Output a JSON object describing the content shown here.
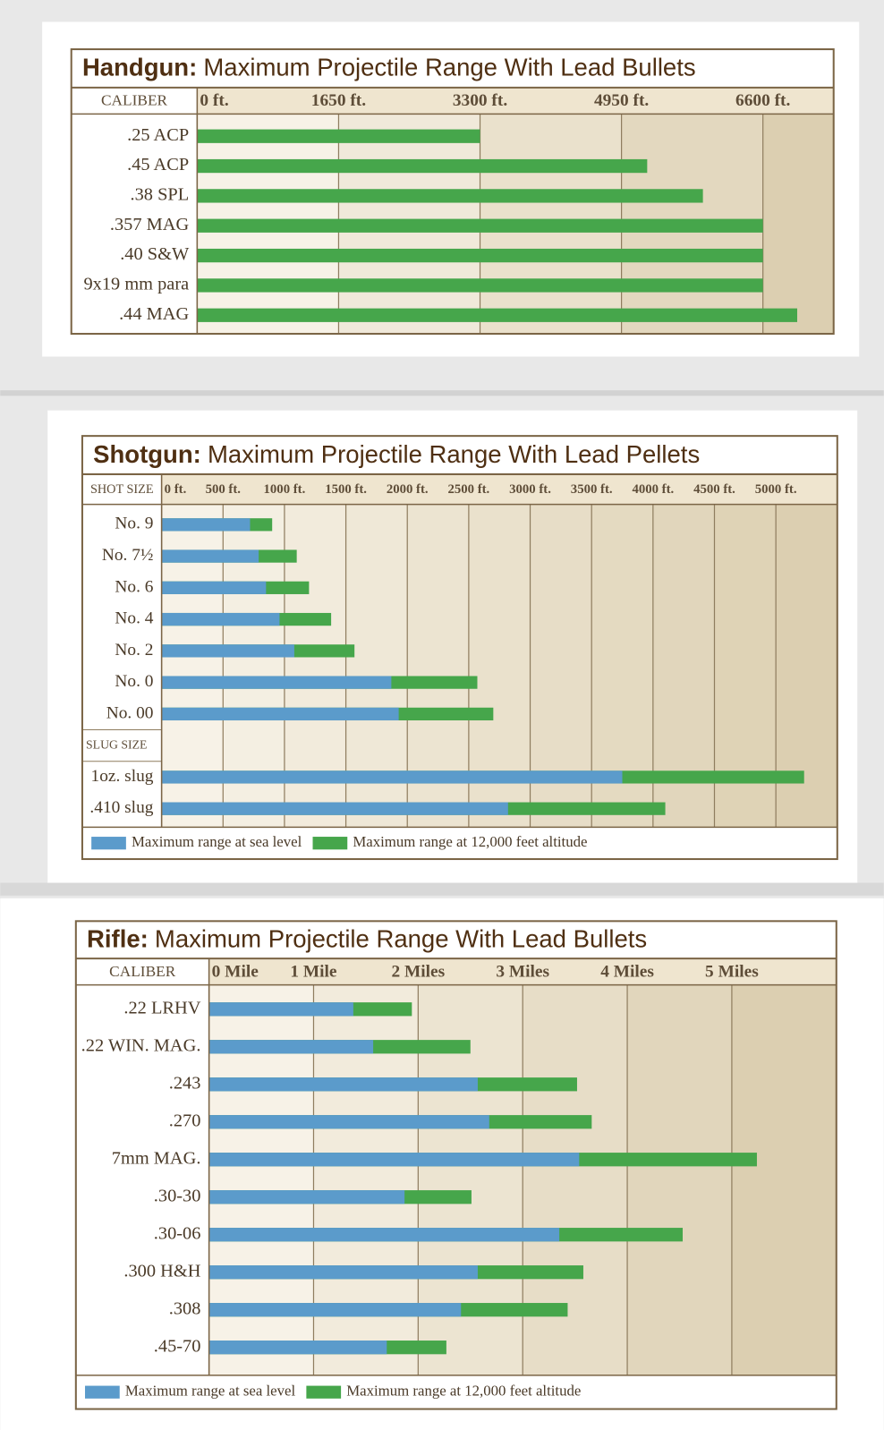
{
  "chart_data": [
    {
      "type": "bar",
      "orientation": "horizontal",
      "title_prefix": "Handgun:",
      "title": "Maximum Projectile Range With Lead Bullets",
      "y_label": "CALIBER",
      "categories": [
        ".25 ACP",
        ".45 ACP",
        ".38 SPL",
        ".357 MAG",
        ".40 S&W",
        "9x19 mm para",
        ".44 MAG"
      ],
      "values": [
        3300,
        5250,
        5900,
        6600,
        6600,
        6600,
        7000
      ],
      "color": "#46a64b",
      "xlim": [
        0,
        7425
      ],
      "xticks": [
        {
          "value": 0,
          "label": "0 ft."
        },
        {
          "value": 1650,
          "label": "1650 ft."
        },
        {
          "value": 3300,
          "label": "3300 ft."
        },
        {
          "value": 4950,
          "label": "4950 ft."
        },
        {
          "value": 6600,
          "label": "6600 ft."
        }
      ],
      "grid": true
    },
    {
      "type": "bar",
      "orientation": "horizontal",
      "barmode": "overlay",
      "title_prefix": "Shotgun:",
      "title": "Maximum Projectile Range With Lead Pellets",
      "y_label": "SHOT SIZE",
      "categories": [
        "No. 9",
        "No. 7½",
        "No. 6",
        "No. 4",
        "No. 2",
        "No. 0",
        "No. 00",
        "SLUG SIZE",
        "1oz. slug",
        ".410 slug"
      ],
      "series": [
        {
          "name": "Maximum range at sea level",
          "color": "#5b9bcb",
          "values": [
            720,
            790,
            850,
            960,
            1080,
            1870,
            1930,
            null,
            3750,
            2820
          ]
        },
        {
          "name": "Maximum range at 12,000 feet altitude",
          "color": "#46a64b",
          "values": [
            900,
            1100,
            1200,
            1380,
            1570,
            2570,
            2700,
            null,
            5230,
            4100
          ]
        }
      ],
      "xlim": [
        0,
        5500
      ],
      "xticks": [
        {
          "value": 0,
          "label": "0 ft."
        },
        {
          "value": 500,
          "label": "500 ft."
        },
        {
          "value": 1000,
          "label": "1000 ft."
        },
        {
          "value": 1500,
          "label": "1500 ft."
        },
        {
          "value": 2000,
          "label": "2000 ft."
        },
        {
          "value": 2500,
          "label": "2500 ft."
        },
        {
          "value": 3000,
          "label": "3000 ft."
        },
        {
          "value": 3500,
          "label": "3500 ft."
        },
        {
          "value": 4000,
          "label": "4000 ft."
        },
        {
          "value": 4500,
          "label": "4500 ft."
        },
        {
          "value": 5000,
          "label": "5000 ft."
        }
      ],
      "grid": true,
      "legend": "bottom"
    },
    {
      "type": "bar",
      "orientation": "horizontal",
      "barmode": "overlay",
      "title_prefix": "Rifle:",
      "title": "Maximum Projectile Range With Lead Bullets",
      "y_label": "CALIBER",
      "categories": [
        ".22 LRHV",
        ".22 WIN. MAG.",
        ".243",
        ".270",
        "7mm MAG.",
        ".30-30",
        ".30-06",
        ".300 H&H",
        ".308",
        ".45-70"
      ],
      "series": [
        {
          "name": "Maximum range at sea level",
          "color": "#5b9bcb",
          "values": [
            1.38,
            1.57,
            2.57,
            2.68,
            3.54,
            1.87,
            3.35,
            2.57,
            2.41,
            1.7
          ]
        },
        {
          "name": "Maximum range at 12,000 feet altitude",
          "color": "#46a64b",
          "values": [
            1.94,
            2.5,
            3.52,
            3.66,
            5.24,
            2.51,
            4.53,
            3.58,
            3.43,
            2.27
          ]
        }
      ],
      "xlim": [
        0,
        6
      ],
      "xticks": [
        {
          "value": 0,
          "label": "0 Mile"
        },
        {
          "value": 1,
          "label": "1 Mile"
        },
        {
          "value": 2,
          "label": "2 Miles"
        },
        {
          "value": 3,
          "label": "3 Miles"
        },
        {
          "value": 4,
          "label": "4 Miles"
        },
        {
          "value": 5,
          "label": "5 Miles"
        }
      ],
      "grid": true,
      "legend": "bottom"
    }
  ]
}
